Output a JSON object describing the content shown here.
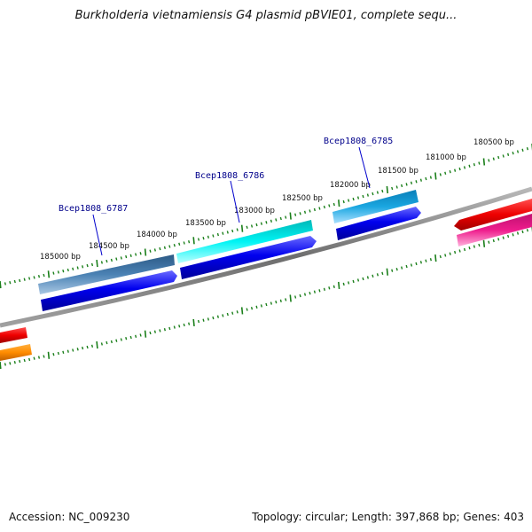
{
  "title": "Burkholderia vietnamiensis G4 plasmid pBVIE01, complete sequ...",
  "footer": {
    "accession": "Accession: NC_009230",
    "summary": "Topology: circular; Length: 397,868 bp; Genes: 403"
  },
  "ticks": [
    "185000 bp",
    "184500 bp",
    "184000 bp",
    "183500 bp",
    "183000 bp",
    "182500 bp",
    "182000 bp",
    "181500 bp",
    "181000 bp",
    "180500 bp"
  ],
  "genes": [
    "Bcep1808_6787",
    "Bcep1808_6786",
    "Bcep1808_6785"
  ],
  "colors": {
    "backbone": "#7f7f7f",
    "ticks": "#1a7f1a",
    "gene_blue": "#0000ee",
    "steel_blue": "#4b82b4",
    "cyan": "#00e8e8",
    "sky_blue": "#1aa6e0",
    "red": "#ee0000",
    "pink": "#ee1c8c",
    "orange": "#ff8c00",
    "label_line": "#0000cc"
  }
}
